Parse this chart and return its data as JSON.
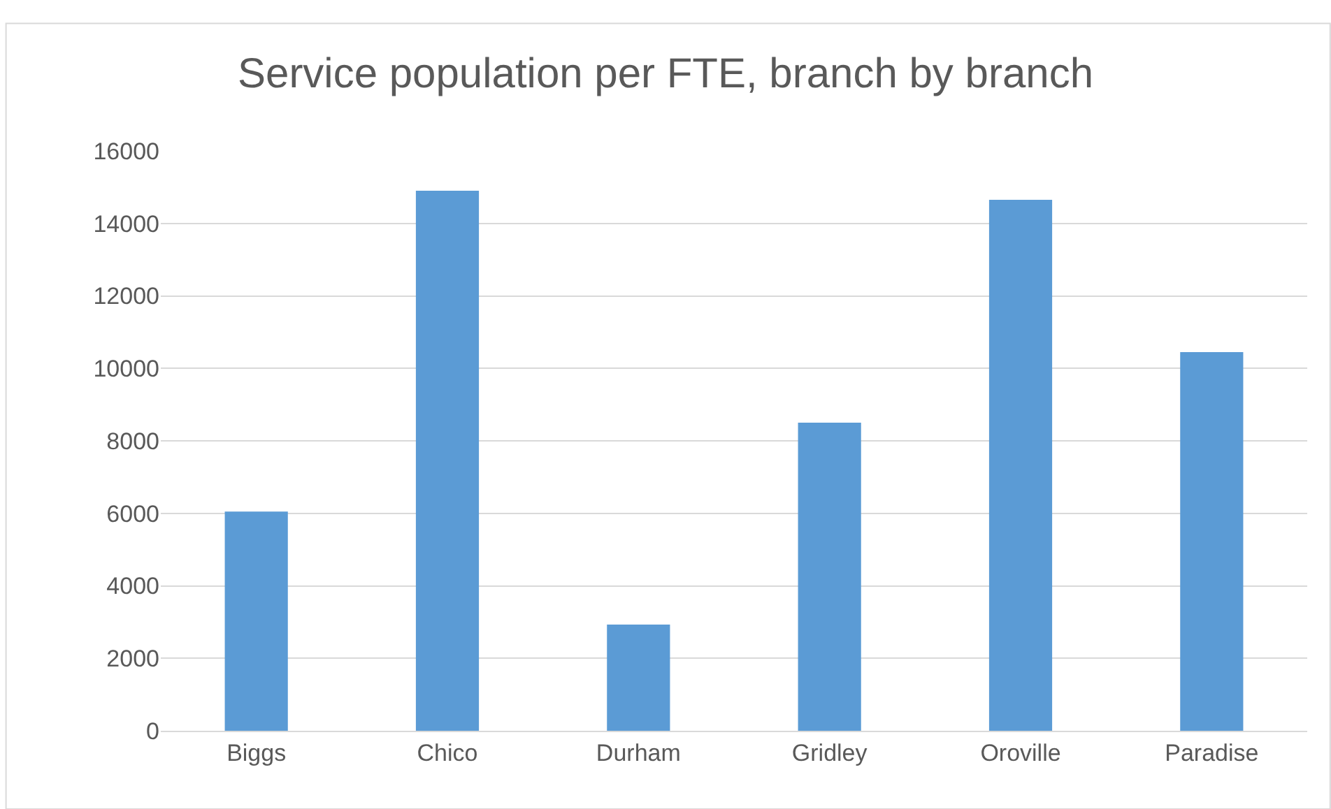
{
  "chart_data": {
    "type": "bar",
    "title": "Service population per FTE, branch by branch",
    "categories": [
      "Biggs",
      "Chico",
      "Durham",
      "Gridley",
      "Oroville",
      "Paradise"
    ],
    "values": [
      6050,
      14900,
      2930,
      8500,
      14650,
      10450
    ],
    "color": "#5b9bd5",
    "ylim": [
      0,
      16000
    ],
    "yticks": [
      0,
      2000,
      4000,
      6000,
      8000,
      10000,
      12000,
      14000,
      16000
    ],
    "grid": "y",
    "legend": false
  }
}
